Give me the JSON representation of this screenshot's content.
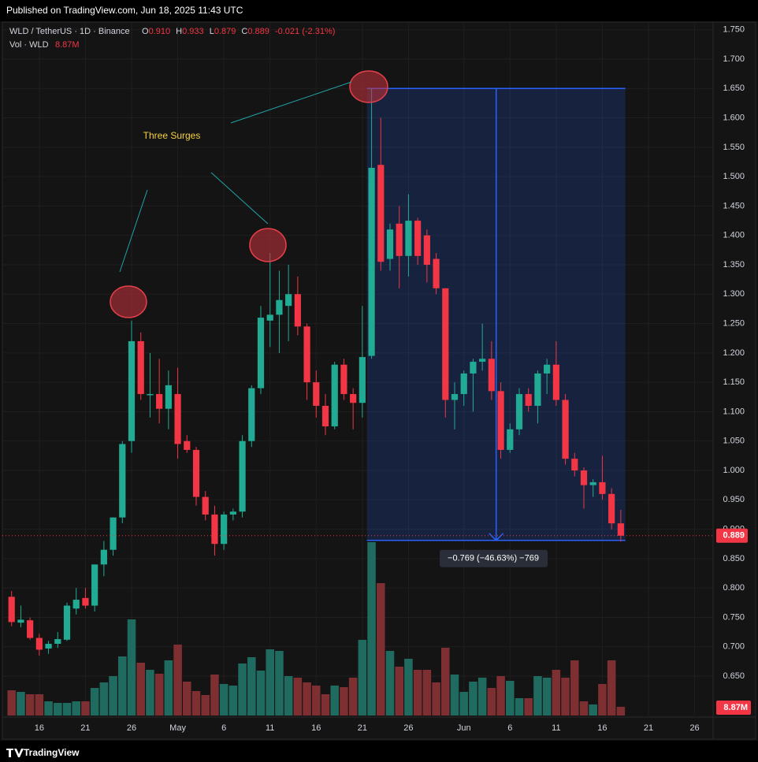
{
  "header": {
    "published": "Published on TradingView.com, Jun 18, 2025 11:43 UTC"
  },
  "status": {
    "symbol": "WLD / TetherUS · 1D · Binance",
    "o_label": "O",
    "open": "0.910",
    "h_label": "H",
    "high": "0.933",
    "l_label": "L",
    "low": "0.879",
    "c_label": "C",
    "close": "0.889",
    "change": "-0.021 (-2.31%)",
    "vol_label": "Vol · WLD",
    "vol": "8.87M"
  },
  "chart_data": {
    "type": "candlestick",
    "annotations": [
      "Three Surges"
    ],
    "up_color": "#22ab94",
    "down_color": "#f23645",
    "volume_up_color": "#1f6b60",
    "volume_down_color": "#7e2f31",
    "measure": {
      "top": 1.65,
      "bottom": 0.881,
      "label": "−0.769 (−46.63%) −769",
      "color": "#2962ff"
    },
    "last_price": {
      "value": 0.889,
      "label": "0.889"
    },
    "open": [
      0.785,
      0.741,
      0.745,
      0.715,
      0.697,
      0.705,
      0.712,
      0.765,
      0.783,
      0.77,
      0.84,
      0.865,
      0.92,
      1.05,
      1.22,
      1.128,
      1.13,
      1.105,
      1.13,
      1.05,
      1.035,
      0.955,
      0.925,
      0.875,
      0.925,
      0.93,
      1.05,
      1.14,
      1.255,
      1.265,
      1.28,
      1.3,
      1.245,
      1.15,
      1.11,
      1.075,
      1.18,
      1.13,
      1.115,
      1.195,
      1.52,
      1.36,
      1.42,
      1.365,
      1.425,
      1.4,
      1.36,
      1.31,
      1.12,
      1.13,
      1.165,
      1.185,
      1.19,
      1.135,
      1.035,
      1.07,
      1.13,
      1.11,
      1.165,
      1.18,
      1.12,
      1.02,
      1.0,
      0.975,
      0.98,
      0.96,
      0.91
    ],
    "high": [
      0.795,
      0.77,
      0.75,
      0.722,
      0.71,
      0.725,
      0.775,
      0.8,
      0.8,
      0.84,
      0.88,
      0.92,
      1.05,
      1.255,
      1.235,
      1.2,
      1.19,
      1.17,
      1.175,
      1.06,
      1.04,
      0.965,
      0.94,
      0.93,
      0.935,
      1.06,
      1.145,
      1.28,
      1.37,
      1.34,
      1.35,
      1.33,
      1.25,
      1.17,
      1.13,
      1.185,
      1.19,
      1.14,
      1.28,
      1.65,
      1.6,
      1.42,
      1.45,
      1.47,
      1.43,
      1.41,
      1.37,
      1.31,
      1.15,
      1.17,
      1.19,
      1.25,
      1.22,
      1.15,
      1.08,
      1.14,
      1.14,
      1.17,
      1.19,
      1.22,
      1.13,
      1.03,
      1.005,
      0.985,
      1.025,
      0.97,
      0.933
    ],
    "low": [
      0.735,
      0.733,
      0.712,
      0.685,
      0.688,
      0.698,
      0.71,
      0.755,
      0.765,
      0.76,
      0.82,
      0.855,
      0.91,
      1.03,
      1.12,
      1.09,
      1.08,
      1.07,
      1.02,
      1.03,
      0.94,
      0.915,
      0.855,
      0.865,
      0.915,
      0.92,
      1.04,
      1.13,
      1.21,
      1.2,
      1.22,
      1.23,
      1.12,
      1.09,
      1.06,
      1.07,
      1.12,
      1.07,
      1.09,
      1.19,
      1.34,
      1.34,
      1.31,
      1.33,
      1.35,
      1.32,
      1.3,
      1.09,
      1.07,
      1.11,
      1.1,
      1.17,
      1.12,
      1.02,
      1.03,
      1.06,
      1.1,
      1.08,
      1.13,
      1.11,
      1.01,
      0.99,
      0.935,
      0.955,
      0.95,
      0.9,
      0.879
    ],
    "close": [
      0.742,
      0.746,
      0.715,
      0.695,
      0.705,
      0.713,
      0.77,
      0.78,
      0.77,
      0.84,
      0.865,
      0.92,
      1.045,
      1.22,
      1.13,
      1.13,
      1.105,
      1.145,
      1.045,
      1.035,
      0.955,
      0.925,
      0.875,
      0.925,
      0.93,
      1.05,
      1.14,
      1.26,
      1.265,
      1.29,
      1.3,
      1.245,
      1.15,
      1.11,
      1.075,
      1.18,
      1.13,
      1.115,
      1.193,
      1.515,
      1.355,
      1.41,
      1.365,
      1.425,
      1.365,
      1.35,
      1.31,
      1.12,
      1.13,
      1.165,
      1.185,
      1.19,
      1.135,
      1.035,
      1.07,
      1.13,
      1.11,
      1.165,
      1.18,
      1.12,
      1.02,
      1.0,
      0.975,
      0.98,
      0.96,
      0.91,
      0.889
    ],
    "volume": [
      25.6,
      24,
      21.6,
      21.6,
      14.4,
      12.8,
      12.8,
      14.4,
      14.4,
      28,
      33.6,
      40,
      60,
      97.6,
      53.6,
      46.4,
      42.4,
      56,
      72,
      34.4,
      24.8,
      20.8,
      41.6,
      32,
      30.4,
      52.8,
      59.2,
      45.6,
      67.2,
      65.6,
      40,
      38.4,
      33.6,
      30.4,
      21.6,
      30.4,
      28.8,
      38.4,
      76.8,
      176,
      134.4,
      65.6,
      49.6,
      57.6,
      46.4,
      46.4,
      33.6,
      68.8,
      41.6,
      24,
      34.4,
      38.4,
      28,
      40,
      35.2,
      17.6,
      17.6,
      40,
      38.4,
      46.4,
      38.4,
      56,
      14.4,
      11.2,
      32,
      56,
      8.87
    ],
    "volume_value_labels": {
      "66": "8.87M"
    },
    "xlim": [
      -1,
      76
    ],
    "xticks": [
      {
        "value": 3,
        "label": "16"
      },
      {
        "value": 8,
        "label": "21"
      },
      {
        "value": 13,
        "label": "26"
      },
      {
        "value": 18,
        "label": "May"
      },
      {
        "value": 23,
        "label": "6"
      },
      {
        "value": 28,
        "label": "11"
      },
      {
        "value": 33,
        "label": "16"
      },
      {
        "value": 38,
        "label": "21"
      },
      {
        "value": 43,
        "label": "26"
      },
      {
        "value": 49,
        "label": "Jun"
      },
      {
        "value": 54,
        "label": "6"
      },
      {
        "value": 59,
        "label": "11"
      },
      {
        "value": 64,
        "label": "16"
      },
      {
        "value": 69,
        "label": "21"
      },
      {
        "value": 74,
        "label": "26"
      }
    ],
    "ylim": [
      0.583,
      1.763
    ],
    "yticks": [
      {
        "value": 0.65,
        "label": "0.650"
      },
      {
        "value": 0.7,
        "label": "0.700"
      },
      {
        "value": 0.75,
        "label": "0.750"
      },
      {
        "value": 0.8,
        "label": "0.800"
      },
      {
        "value": 0.85,
        "label": "0.850"
      },
      {
        "value": 0.9,
        "label": "0.900"
      },
      {
        "value": 0.95,
        "label": "0.950"
      },
      {
        "value": 1.0,
        "label": "1.000"
      },
      {
        "value": 1.05,
        "label": "1.050"
      },
      {
        "value": 1.1,
        "label": "1.100"
      },
      {
        "value": 1.15,
        "label": "1.150"
      },
      {
        "value": 1.2,
        "label": "1.200"
      },
      {
        "value": 1.25,
        "label": "1.250"
      },
      {
        "value": 1.3,
        "label": "1.300"
      },
      {
        "value": 1.35,
        "label": "1.350"
      },
      {
        "value": 1.4,
        "label": "1.400"
      },
      {
        "value": 1.45,
        "label": "1.450"
      },
      {
        "value": 1.5,
        "label": "1.500"
      },
      {
        "value": 1.55,
        "label": "1.550"
      },
      {
        "value": 1.6,
        "label": "1.600"
      },
      {
        "value": 1.65,
        "label": "1.650"
      },
      {
        "value": 1.7,
        "label": "1.700"
      },
      {
        "value": 1.75,
        "label": "1.750"
      }
    ],
    "y2lim": [
      0,
      704
    ],
    "grid": true
  },
  "footer": {
    "brand": "TradingView"
  }
}
